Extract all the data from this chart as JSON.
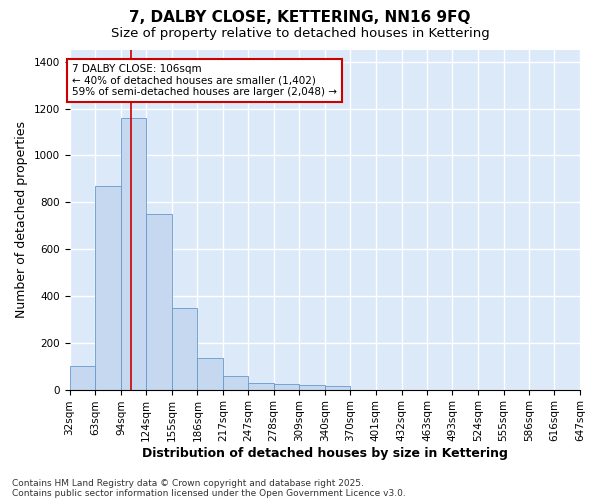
{
  "title": "7, DALBY CLOSE, KETTERING, NN16 9FQ",
  "subtitle": "Size of property relative to detached houses in Kettering",
  "xlabel": "Distribution of detached houses by size in Kettering",
  "ylabel": "Number of detached properties",
  "bin_edges": [
    32,
    63,
    94,
    124,
    155,
    186,
    217,
    247,
    278,
    309,
    340,
    370,
    401,
    432,
    463,
    493,
    524,
    555,
    586,
    616,
    647
  ],
  "bar_heights": [
    100,
    870,
    1160,
    750,
    350,
    135,
    60,
    30,
    25,
    20,
    15,
    0,
    0,
    0,
    0,
    0,
    0,
    0,
    0,
    0
  ],
  "bar_color": "#c5d8f0",
  "bar_edge_color": "#6699cc",
  "background_color": "#dce9f8",
  "grid_color": "#ffffff",
  "property_size": 106,
  "property_label": "7 DALBY CLOSE: 106sqm",
  "annotation_line1": "← 40% of detached houses are smaller (1,402)",
  "annotation_line2": "59% of semi-detached houses are larger (2,048) →",
  "red_line_color": "#cc0000",
  "annotation_box_color": "#ffffff",
  "annotation_box_edge": "#cc0000",
  "ylim": [
    0,
    1450
  ],
  "yticks": [
    0,
    200,
    400,
    600,
    800,
    1000,
    1200,
    1400
  ],
  "footer1": "Contains HM Land Registry data © Crown copyright and database right 2025.",
  "footer2": "Contains public sector information licensed under the Open Government Licence v3.0.",
  "title_fontsize": 11,
  "subtitle_fontsize": 9.5,
  "axis_label_fontsize": 9,
  "tick_fontsize": 7.5,
  "annotation_fontsize": 7.5,
  "footer_fontsize": 6.5
}
